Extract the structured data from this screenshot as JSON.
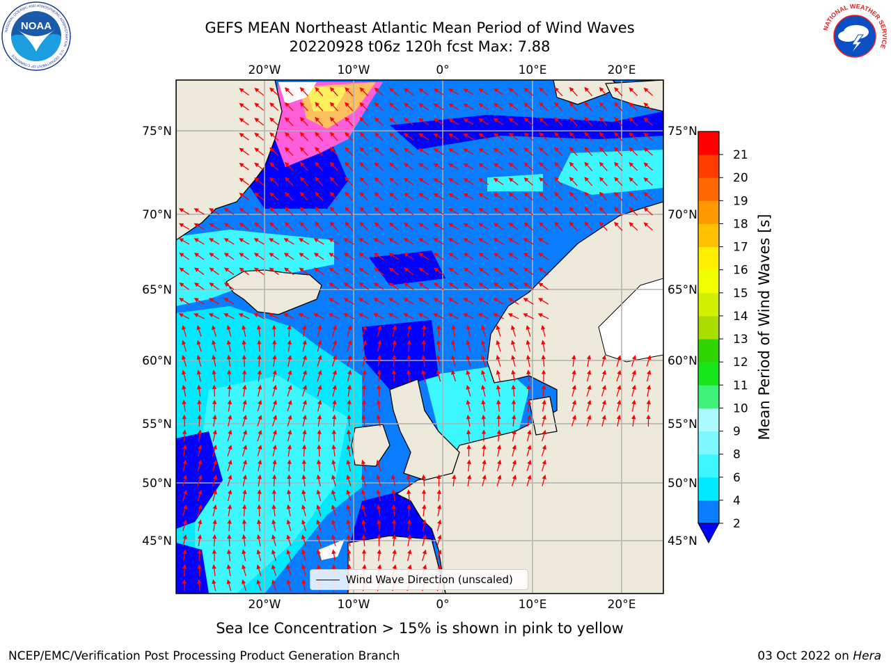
{
  "title": {
    "line1": "GEFS MEAN Northeast Atlantic Mean Period of Wind Waves",
    "line2": "20220928 t06z 120h fcst   Max: 7.88"
  },
  "map": {
    "lon_labels": [
      "20°W",
      "10°W",
      "0°",
      "10°E",
      "20°E"
    ],
    "lat_labels": [
      "75°N",
      "70°N",
      "65°N",
      "60°N",
      "55°N",
      "50°N",
      "45°N"
    ],
    "legend_label": "Wind Wave Direction (unscaled)",
    "ocean_color": "#0a7cff",
    "land_color": "#eeeadb",
    "arrow_color": "#ff0000",
    "grid_color": "#b0b0b0"
  },
  "colorbar": {
    "label": "Mean Period of Wind Waves [s]",
    "ticks": [
      "2",
      "4",
      "6",
      "8",
      "9",
      "10",
      "11",
      "12",
      "13",
      "14",
      "15",
      "16",
      "17",
      "18",
      "19",
      "20",
      "21"
    ],
    "colors": [
      "#0a7cff",
      "#00eaff",
      "#3cf7ff",
      "#7ef8ff",
      "#aefbff",
      "#3ff27a",
      "#17e61b",
      "#30d500",
      "#a9dd00",
      "#d0f000",
      "#f0ff00",
      "#fff000",
      "#ffc000",
      "#ff9900",
      "#ff6a00",
      "#ff3d00",
      "#ff0000"
    ],
    "under_color": "#0000ff"
  },
  "caption": "Sea Ice Concentration > 15% is shown in pink to yellow",
  "credit": {
    "left": "NCEP/EMC/Verification Post Processing Product Generation Branch",
    "right_prefix": "03 Oct 2022 on ",
    "right_host": "Hera"
  },
  "logos": {
    "noaa": "NOAA",
    "noaa_ring": "NATIONAL OCEANIC AND ATMOSPHERIC ADMINISTRATION · U.S. DEPARTMENT OF COMMERCE",
    "nws_ring": "NATIONAL WEATHER SERVICE"
  }
}
